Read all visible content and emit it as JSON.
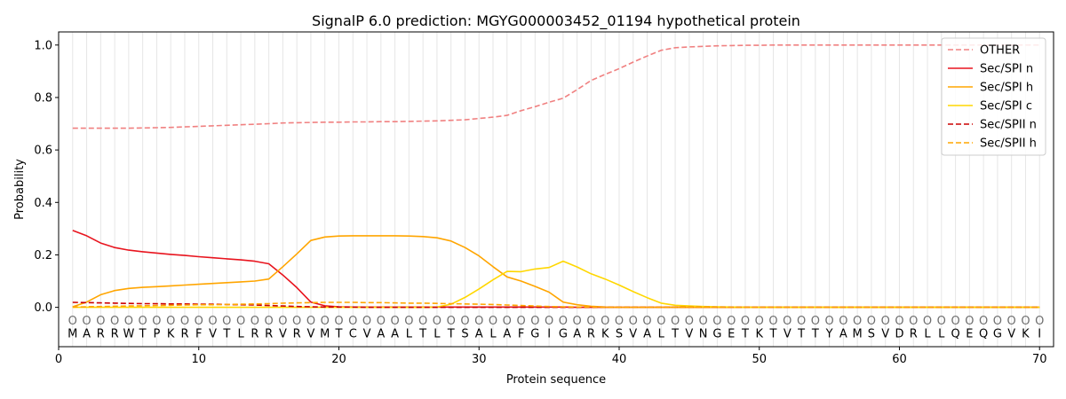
{
  "chart_data": {
    "type": "line",
    "title": "SignalP 6.0 prediction: MGYG000003452_01194 hypothetical protein",
    "xlabel": "Protein sequence",
    "ylabel": "Probability",
    "xlim": [
      0,
      71
    ],
    "ylim": [
      -0.15,
      1.05
    ],
    "x_ticks": [
      0,
      10,
      20,
      30,
      40,
      50,
      60,
      70
    ],
    "y_ticks": [
      0.0,
      0.2,
      0.4,
      0.6,
      0.8,
      1.0
    ],
    "y_tick_labels": [
      "0.0",
      "0.2",
      "0.4",
      "0.6",
      "0.8",
      "1.0"
    ],
    "grid": "vertical lines at each residue",
    "legend_position": "top-right",
    "sequence": [
      "M",
      "A",
      "R",
      "R",
      "W",
      "T",
      "P",
      "K",
      "R",
      "F",
      "V",
      "T",
      "L",
      "R",
      "R",
      "V",
      "R",
      "V",
      "M",
      "T",
      "C",
      "V",
      "A",
      "A",
      "L",
      "T",
      "L",
      "T",
      "S",
      "A",
      "L",
      "A",
      "F",
      "G",
      "I",
      "G",
      "A",
      "R",
      "K",
      "S",
      "V",
      "A",
      "L",
      "T",
      "V",
      "N",
      "G",
      "E",
      "T",
      "K",
      "T",
      "V",
      "T",
      "T",
      "Y",
      "A",
      "M",
      "S",
      "V",
      "D",
      "R",
      "L",
      "L",
      "Q",
      "E",
      "Q",
      "G",
      "V",
      "K",
      "I"
    ],
    "position_marker": "O",
    "x": [
      1,
      2,
      3,
      4,
      5,
      6,
      7,
      8,
      9,
      10,
      11,
      12,
      13,
      14,
      15,
      16,
      17,
      18,
      19,
      20,
      21,
      22,
      23,
      24,
      25,
      26,
      27,
      28,
      29,
      30,
      31,
      32,
      33,
      34,
      35,
      36,
      37,
      38,
      39,
      40,
      41,
      42,
      43,
      44,
      45,
      46,
      47,
      48,
      49,
      50,
      51,
      52,
      53,
      54,
      55,
      56,
      57,
      58,
      59,
      60,
      61,
      62,
      63,
      64,
      65,
      66,
      67,
      68,
      69,
      70
    ],
    "series": [
      {
        "name": "OTHER",
        "color": "#f08080",
        "dash": "dashed",
        "values": [
          0.683,
          0.683,
          0.683,
          0.683,
          0.683,
          0.684,
          0.685,
          0.686,
          0.688,
          0.69,
          0.692,
          0.694,
          0.696,
          0.698,
          0.7,
          0.703,
          0.704,
          0.705,
          0.706,
          0.706,
          0.707,
          0.707,
          0.708,
          0.708,
          0.709,
          0.71,
          0.711,
          0.713,
          0.715,
          0.72,
          0.725,
          0.732,
          0.75,
          0.765,
          0.782,
          0.797,
          0.83,
          0.865,
          0.888,
          0.91,
          0.935,
          0.958,
          0.98,
          0.99,
          0.993,
          0.995,
          0.997,
          0.998,
          0.999,
          0.999,
          1.0,
          1.0,
          1.0,
          1.0,
          1.0,
          1.0,
          1.0,
          1.0,
          1.0,
          1.0,
          1.0,
          1.0,
          1.0,
          1.0,
          1.0,
          1.0,
          1.0,
          1.0,
          1.0,
          1.0
        ]
      },
      {
        "name": "Sec/SPI n",
        "color": "#e8141e",
        "dash": "solid",
        "values": [
          0.293,
          0.273,
          0.245,
          0.228,
          0.218,
          0.212,
          0.207,
          0.202,
          0.198,
          0.193,
          0.189,
          0.185,
          0.181,
          0.176,
          0.166,
          0.123,
          0.075,
          0.02,
          0.006,
          0.002,
          0.001,
          0.001,
          0.001,
          0.001,
          0.001,
          0.001,
          0.001,
          0.001,
          0.001,
          0.001,
          0.001,
          0.001,
          0.001,
          0.001,
          0.001,
          0.001,
          0.0,
          0.0,
          0.0,
          0.0,
          0.0,
          0.0,
          0.0,
          0.0,
          0.0,
          0.0,
          0.0,
          0.0,
          0.0,
          0.0,
          0.0,
          0.0,
          0.0,
          0.0,
          0.0,
          0.0,
          0.0,
          0.0,
          0.0,
          0.0,
          0.0,
          0.0,
          0.0,
          0.0,
          0.0,
          0.0,
          0.0,
          0.0,
          0.0,
          0.0
        ]
      },
      {
        "name": "Sec/SPI h",
        "color": "#ffa500",
        "dash": "solid",
        "values": [
          0.002,
          0.02,
          0.048,
          0.064,
          0.072,
          0.076,
          0.079,
          0.082,
          0.085,
          0.088,
          0.091,
          0.094,
          0.097,
          0.1,
          0.108,
          0.155,
          0.204,
          0.255,
          0.268,
          0.272,
          0.273,
          0.273,
          0.273,
          0.273,
          0.272,
          0.27,
          0.265,
          0.253,
          0.228,
          0.196,
          0.155,
          0.116,
          0.1,
          0.08,
          0.058,
          0.02,
          0.01,
          0.004,
          0.001,
          0.0,
          0.0,
          0.0,
          0.0,
          0.0,
          0.0,
          0.0,
          0.0,
          0.0,
          0.0,
          0.0,
          0.0,
          0.0,
          0.0,
          0.0,
          0.0,
          0.0,
          0.0,
          0.0,
          0.0,
          0.0,
          0.0,
          0.0,
          0.0,
          0.0,
          0.0,
          0.0,
          0.0,
          0.0,
          0.0,
          0.0
        ]
      },
      {
        "name": "Sec/SPI c",
        "color": "#ffd700",
        "dash": "solid",
        "values": [
          0.0,
          0.0,
          0.0,
          0.0,
          0.0,
          0.0,
          0.0,
          0.0,
          0.0,
          0.0,
          0.0,
          0.0,
          0.0,
          0.0,
          0.0,
          0.0,
          0.0,
          0.0,
          0.0,
          0.0,
          0.0,
          0.0,
          0.0,
          0.0,
          0.0,
          0.0,
          0.001,
          0.012,
          0.038,
          0.07,
          0.105,
          0.137,
          0.136,
          0.146,
          0.152,
          0.176,
          0.154,
          0.128,
          0.108,
          0.085,
          0.06,
          0.037,
          0.016,
          0.008,
          0.005,
          0.003,
          0.002,
          0.001,
          0.0,
          0.0,
          0.0,
          0.0,
          0.0,
          0.0,
          0.0,
          0.0,
          0.0,
          0.0,
          0.0,
          0.0,
          0.0,
          0.0,
          0.0,
          0.0,
          0.0,
          0.0,
          0.0,
          0.0,
          0.0,
          0.0
        ]
      },
      {
        "name": "Sec/SPII n",
        "color": "#cc0000",
        "dash": "dashed",
        "values": [
          0.019,
          0.018,
          0.017,
          0.016,
          0.015,
          0.014,
          0.014,
          0.013,
          0.013,
          0.012,
          0.012,
          0.011,
          0.01,
          0.009,
          0.007,
          0.005,
          0.003,
          0.002,
          0.001,
          0.001,
          0.001,
          0.0,
          0.0,
          0.0,
          0.0,
          0.0,
          0.0,
          0.0,
          0.0,
          0.0,
          0.0,
          0.0,
          0.0,
          0.0,
          0.0,
          0.0,
          0.0,
          0.0,
          0.0,
          0.0,
          0.0,
          0.0,
          0.0,
          0.0,
          0.0,
          0.0,
          0.0,
          0.0,
          0.0,
          0.0,
          0.0,
          0.0,
          0.0,
          0.0,
          0.0,
          0.0,
          0.0,
          0.0,
          0.0,
          0.0,
          0.0,
          0.0,
          0.0,
          0.0,
          0.0,
          0.0,
          0.0,
          0.0,
          0.0,
          0.0
        ]
      },
      {
        "name": "Sec/SPII h",
        "color": "#ffa500",
        "dash": "dashed",
        "values": [
          0.001,
          0.002,
          0.003,
          0.004,
          0.005,
          0.006,
          0.007,
          0.008,
          0.009,
          0.01,
          0.01,
          0.011,
          0.012,
          0.013,
          0.014,
          0.016,
          0.017,
          0.018,
          0.019,
          0.019,
          0.019,
          0.018,
          0.018,
          0.017,
          0.016,
          0.016,
          0.015,
          0.014,
          0.013,
          0.012,
          0.011,
          0.009,
          0.007,
          0.005,
          0.003,
          0.002,
          0.001,
          0.001,
          0.0,
          0.0,
          0.0,
          0.0,
          0.0,
          0.0,
          0.0,
          0.0,
          0.0,
          0.0,
          0.0,
          0.0,
          0.0,
          0.0,
          0.0,
          0.0,
          0.0,
          0.0,
          0.0,
          0.0,
          0.0,
          0.0,
          0.0,
          0.0,
          0.0,
          0.0,
          0.0,
          0.0,
          0.0,
          0.0,
          0.0,
          0.0
        ]
      }
    ]
  }
}
